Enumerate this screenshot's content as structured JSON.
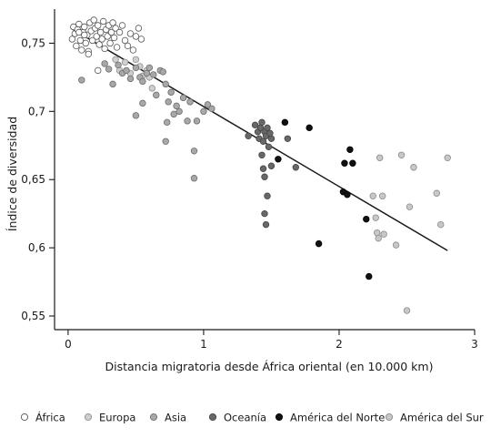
{
  "chart_data": {
    "type": "scatter",
    "xlabel": "Distancia migratoria desde África oriental (en 10.000 km)",
    "ylabel": "Índice de diversidad",
    "xlim": [
      -0.1,
      3.0
    ],
    "ylim": [
      0.54,
      0.775
    ],
    "xticks": [
      0,
      1,
      2,
      3
    ],
    "xtick_labels": [
      "0",
      "1",
      "2",
      "3"
    ],
    "yticks": [
      0.55,
      0.6,
      0.65,
      0.7,
      0.75
    ],
    "ytick_labels": [
      "0,55",
      "0,6",
      "0,65",
      "0,7",
      "0,75"
    ],
    "grid": false,
    "legend_position": "bottom",
    "trendline": {
      "x": [
        0.02,
        2.8
      ],
      "y": [
        0.761,
        0.598
      ]
    },
    "series": [
      {
        "name": "África",
        "fill": "#ffffff",
        "stroke": "#555555",
        "points": [
          [
            0.03,
            0.753
          ],
          [
            0.04,
            0.762
          ],
          [
            0.05,
            0.757
          ],
          [
            0.06,
            0.748
          ],
          [
            0.07,
            0.76
          ],
          [
            0.08,
            0.764
          ],
          [
            0.09,
            0.752
          ],
          [
            0.1,
            0.745
          ],
          [
            0.11,
            0.758
          ],
          [
            0.12,
            0.762
          ],
          [
            0.13,
            0.75
          ],
          [
            0.14,
            0.756
          ],
          [
            0.15,
            0.744
          ],
          [
            0.16,
            0.765
          ],
          [
            0.17,
            0.759
          ],
          [
            0.18,
            0.752
          ],
          [
            0.19,
            0.767
          ],
          [
            0.2,
            0.761
          ],
          [
            0.21,
            0.755
          ],
          [
            0.22,
            0.763
          ],
          [
            0.23,
            0.749
          ],
          [
            0.24,
            0.758
          ],
          [
            0.25,
            0.753
          ],
          [
            0.26,
            0.766
          ],
          [
            0.27,
            0.746
          ],
          [
            0.28,
            0.76
          ],
          [
            0.29,
            0.755
          ],
          [
            0.3,
            0.763
          ],
          [
            0.31,
            0.75
          ],
          [
            0.32,
            0.758
          ],
          [
            0.33,
            0.765
          ],
          [
            0.34,
            0.754
          ],
          [
            0.35,
            0.761
          ],
          [
            0.36,
            0.747
          ],
          [
            0.38,
            0.758
          ],
          [
            0.4,
            0.763
          ],
          [
            0.42,
            0.752
          ],
          [
            0.44,
            0.748
          ],
          [
            0.46,
            0.757
          ],
          [
            0.48,
            0.745
          ],
          [
            0.5,
            0.755
          ],
          [
            0.52,
            0.761
          ],
          [
            0.54,
            0.753
          ],
          [
            0.15,
            0.742
          ],
          [
            0.22,
            0.73
          ],
          [
            0.12,
            0.756
          ],
          [
            0.08,
            0.758
          ]
        ]
      },
      {
        "name": "Europa",
        "fill": "#cfcfcf",
        "stroke": "#8f8f8f",
        "points": [
          [
            0.35,
            0.738
          ],
          [
            0.38,
            0.73
          ],
          [
            0.42,
            0.736
          ],
          [
            0.46,
            0.728
          ],
          [
            0.5,
            0.738
          ],
          [
            0.53,
            0.733
          ],
          [
            0.55,
            0.726
          ],
          [
            0.58,
            0.73
          ],
          [
            0.6,
            0.725
          ],
          [
            0.62,
            0.717
          ]
        ]
      },
      {
        "name": "Asia",
        "fill": "#a8a8a8",
        "stroke": "#6e6e6e",
        "points": [
          [
            0.1,
            0.723
          ],
          [
            0.27,
            0.735
          ],
          [
            0.3,
            0.731
          ],
          [
            0.33,
            0.72
          ],
          [
            0.37,
            0.734
          ],
          [
            0.4,
            0.728
          ],
          [
            0.43,
            0.73
          ],
          [
            0.46,
            0.724
          ],
          [
            0.5,
            0.732
          ],
          [
            0.53,
            0.725
          ],
          [
            0.55,
            0.722
          ],
          [
            0.58,
            0.728
          ],
          [
            0.6,
            0.732
          ],
          [
            0.63,
            0.727
          ],
          [
            0.65,
            0.712
          ],
          [
            0.68,
            0.73
          ],
          [
            0.7,
            0.729
          ],
          [
            0.72,
            0.72
          ],
          [
            0.74,
            0.707
          ],
          [
            0.76,
            0.714
          ],
          [
            0.78,
            0.698
          ],
          [
            0.8,
            0.704
          ],
          [
            0.82,
            0.7
          ],
          [
            0.85,
            0.71
          ],
          [
            0.88,
            0.693
          ],
          [
            0.9,
            0.707
          ],
          [
            0.93,
            0.671
          ],
          [
            0.95,
            0.693
          ],
          [
            1.0,
            0.7
          ],
          [
            1.03,
            0.705
          ],
          [
            1.06,
            0.702
          ],
          [
            0.72,
            0.678
          ],
          [
            0.73,
            0.692
          ],
          [
            0.5,
            0.697
          ],
          [
            0.55,
            0.706
          ],
          [
            0.93,
            0.651
          ]
        ]
      },
      {
        "name": "Oceanía",
        "fill": "#686868",
        "stroke": "#444444",
        "points": [
          [
            1.33,
            0.682
          ],
          [
            1.38,
            0.69
          ],
          [
            1.4,
            0.685
          ],
          [
            1.41,
            0.68
          ],
          [
            1.42,
            0.688
          ],
          [
            1.43,
            0.692
          ],
          [
            1.44,
            0.678
          ],
          [
            1.45,
            0.685
          ],
          [
            1.46,
            0.682
          ],
          [
            1.47,
            0.688
          ],
          [
            1.48,
            0.674
          ],
          [
            1.49,
            0.684
          ],
          [
            1.5,
            0.66
          ],
          [
            1.43,
            0.668
          ],
          [
            1.44,
            0.658
          ],
          [
            1.45,
            0.652
          ],
          [
            1.47,
            0.638
          ],
          [
            1.45,
            0.625
          ],
          [
            1.46,
            0.617
          ],
          [
            1.5,
            0.68
          ],
          [
            1.62,
            0.68
          ],
          [
            1.68,
            0.659
          ]
        ]
      },
      {
        "name": "América del Norte",
        "fill": "#111111",
        "stroke": "#000000",
        "points": [
          [
            1.55,
            0.665
          ],
          [
            1.6,
            0.692
          ],
          [
            1.78,
            0.688
          ],
          [
            1.85,
            0.603
          ],
          [
            2.03,
            0.641
          ],
          [
            2.04,
            0.662
          ],
          [
            2.06,
            0.639
          ],
          [
            2.08,
            0.672
          ],
          [
            2.1,
            0.662
          ],
          [
            2.2,
            0.621
          ],
          [
            2.22,
            0.579
          ]
        ]
      },
      {
        "name": "América del Sur",
        "fill": "#c8c8c8",
        "stroke": "#8a8a8a",
        "points": [
          [
            2.25,
            0.638
          ],
          [
            2.27,
            0.622
          ],
          [
            2.28,
            0.611
          ],
          [
            2.29,
            0.607
          ],
          [
            2.3,
            0.666
          ],
          [
            2.32,
            0.638
          ],
          [
            2.33,
            0.61
          ],
          [
            2.42,
            0.602
          ],
          [
            2.46,
            0.668
          ],
          [
            2.5,
            0.554
          ],
          [
            2.52,
            0.63
          ],
          [
            2.55,
            0.659
          ],
          [
            2.72,
            0.64
          ],
          [
            2.75,
            0.617
          ],
          [
            2.8,
            0.666
          ]
        ]
      }
    ]
  }
}
